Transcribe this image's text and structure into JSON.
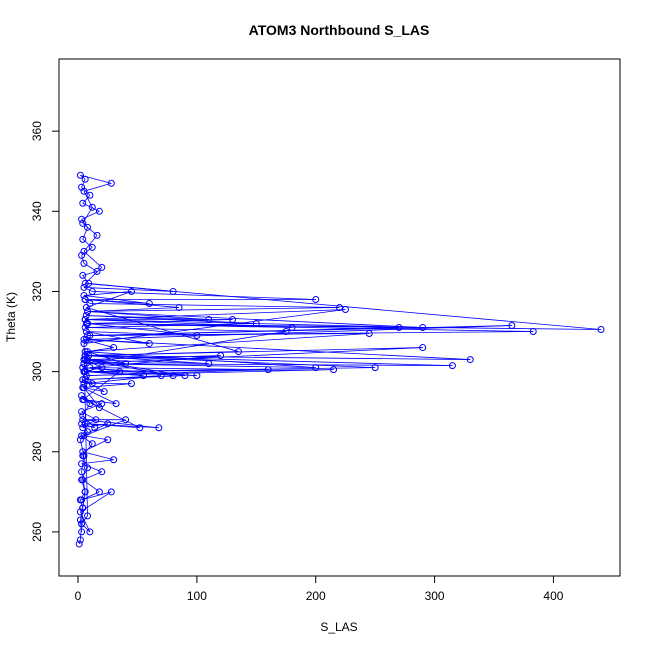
{
  "chart_data": {
    "type": "scatter",
    "title": "ATOM3 Northbound S_LAS",
    "xlabel": "S_LAS",
    "ylabel": "Theta (K)",
    "xlim": [
      -16,
      456
    ],
    "ylim": [
      249,
      378
    ],
    "x_ticks": [
      0,
      100,
      200,
      300,
      400
    ],
    "y_ticks": [
      260,
      280,
      300,
      320,
      340,
      360
    ],
    "grid": false,
    "legend": "none",
    "marker": "open-circle",
    "connected": true,
    "color": "#0000ff",
    "series": [
      {
        "points": [
          [
            1,
            257
          ],
          [
            2,
            258
          ],
          [
            3,
            262
          ],
          [
            4,
            266
          ],
          [
            6,
            270
          ],
          [
            3,
            275
          ],
          [
            5,
            279
          ],
          [
            2,
            283
          ],
          [
            8,
            285
          ],
          [
            3,
            287
          ],
          [
            14,
            286
          ],
          [
            4,
            289
          ],
          [
            10,
            292
          ],
          [
            3,
            294
          ],
          [
            18,
            291
          ],
          [
            5,
            296
          ],
          [
            22,
            295
          ],
          [
            4,
            298
          ],
          [
            12,
            297
          ],
          [
            5,
            300
          ],
          [
            20,
            301
          ],
          [
            6,
            303
          ],
          [
            40,
            302
          ],
          [
            8,
            305
          ],
          [
            30,
            306
          ],
          [
            5,
            308
          ],
          [
            60,
            307
          ],
          [
            7,
            310
          ],
          [
            100,
            309
          ],
          [
            8,
            312
          ],
          [
            180,
            311
          ],
          [
            6,
            313
          ],
          [
            290,
            311
          ],
          [
            8,
            315
          ],
          [
            220,
            316
          ],
          [
            10,
            317
          ],
          [
            6,
            318
          ],
          [
            200,
            318
          ],
          [
            12,
            320
          ],
          [
            5,
            321
          ],
          [
            80,
            320
          ],
          [
            9,
            322
          ],
          [
            4,
            324
          ],
          [
            16,
            325
          ],
          [
            5,
            327
          ],
          [
            3,
            329
          ],
          [
            12,
            331
          ],
          [
            4,
            333
          ],
          [
            8,
            336
          ],
          [
            3,
            338
          ],
          [
            18,
            340
          ],
          [
            4,
            342
          ],
          [
            10,
            344
          ],
          [
            3,
            346
          ],
          [
            6,
            348
          ],
          [
            2,
            349
          ],
          [
            28,
            347
          ],
          [
            5,
            345
          ],
          [
            12,
            341
          ],
          [
            4,
            337
          ],
          [
            16,
            334
          ],
          [
            5,
            330
          ],
          [
            20,
            326
          ],
          [
            6,
            322
          ],
          [
            440,
            310.5
          ],
          [
            8,
            312
          ],
          [
            383,
            310
          ],
          [
            10,
            309
          ],
          [
            365,
            311.5
          ],
          [
            7,
            308
          ],
          [
            330,
            303
          ],
          [
            6,
            304
          ],
          [
            315,
            301.5
          ],
          [
            5,
            302
          ],
          [
            290,
            306
          ],
          [
            9,
            304
          ],
          [
            250,
            301
          ],
          [
            6,
            300
          ],
          [
            215,
            300.5
          ],
          [
            7,
            299
          ],
          [
            160,
            300.5
          ],
          [
            10,
            301
          ],
          [
            120,
            304
          ],
          [
            8,
            303
          ],
          [
            90,
            299
          ],
          [
            6,
            298
          ],
          [
            70,
            299
          ],
          [
            5,
            297
          ],
          [
            45,
            297
          ],
          [
            4,
            296
          ],
          [
            32,
            292
          ],
          [
            5,
            293
          ],
          [
            52,
            286
          ],
          [
            6,
            287
          ],
          [
            68,
            286
          ],
          [
            4,
            288
          ],
          [
            40,
            288
          ],
          [
            5,
            284
          ],
          [
            25,
            283
          ],
          [
            4,
            280
          ],
          [
            30,
            278
          ],
          [
            3,
            277
          ],
          [
            20,
            275
          ],
          [
            4,
            273
          ],
          [
            18,
            270
          ],
          [
            3,
            268
          ],
          [
            28,
            270
          ],
          [
            2,
            265
          ],
          [
            10,
            260
          ],
          [
            3,
            262
          ],
          [
            8,
            264
          ],
          [
            5,
            307
          ],
          [
            225,
            315.5
          ],
          [
            6,
            313
          ],
          [
            130,
            313
          ],
          [
            7,
            312
          ],
          [
            270,
            311
          ],
          [
            8,
            309
          ],
          [
            245,
            309.5
          ],
          [
            6,
            305
          ],
          [
            200,
            301
          ],
          [
            5,
            302
          ],
          [
            175,
            310
          ],
          [
            6,
            311
          ],
          [
            150,
            312
          ],
          [
            7,
            314
          ],
          [
            110,
            313
          ],
          [
            8,
            315
          ],
          [
            85,
            316
          ],
          [
            6,
            318
          ],
          [
            60,
            317
          ],
          [
            5,
            319
          ],
          [
            45,
            320
          ],
          [
            7,
            316
          ],
          [
            135,
            305
          ],
          [
            6,
            304
          ],
          [
            110,
            302
          ],
          [
            5,
            303
          ],
          [
            80,
            299
          ],
          [
            4,
            301
          ],
          [
            100,
            299
          ],
          [
            6,
            300
          ],
          [
            55,
            299
          ],
          [
            5,
            300
          ],
          [
            35,
            300
          ],
          [
            4,
            293
          ],
          [
            20,
            292
          ],
          [
            3,
            290
          ],
          [
            15,
            288
          ],
          [
            4,
            286
          ],
          [
            25,
            287
          ],
          [
            3,
            284
          ],
          [
            12,
            282
          ],
          [
            4,
            279
          ],
          [
            8,
            276
          ],
          [
            3,
            273
          ],
          [
            6,
            270
          ],
          [
            2,
            268
          ],
          [
            4,
            266
          ],
          [
            2,
            263
          ],
          [
            3,
            260
          ]
        ]
      }
    ]
  }
}
